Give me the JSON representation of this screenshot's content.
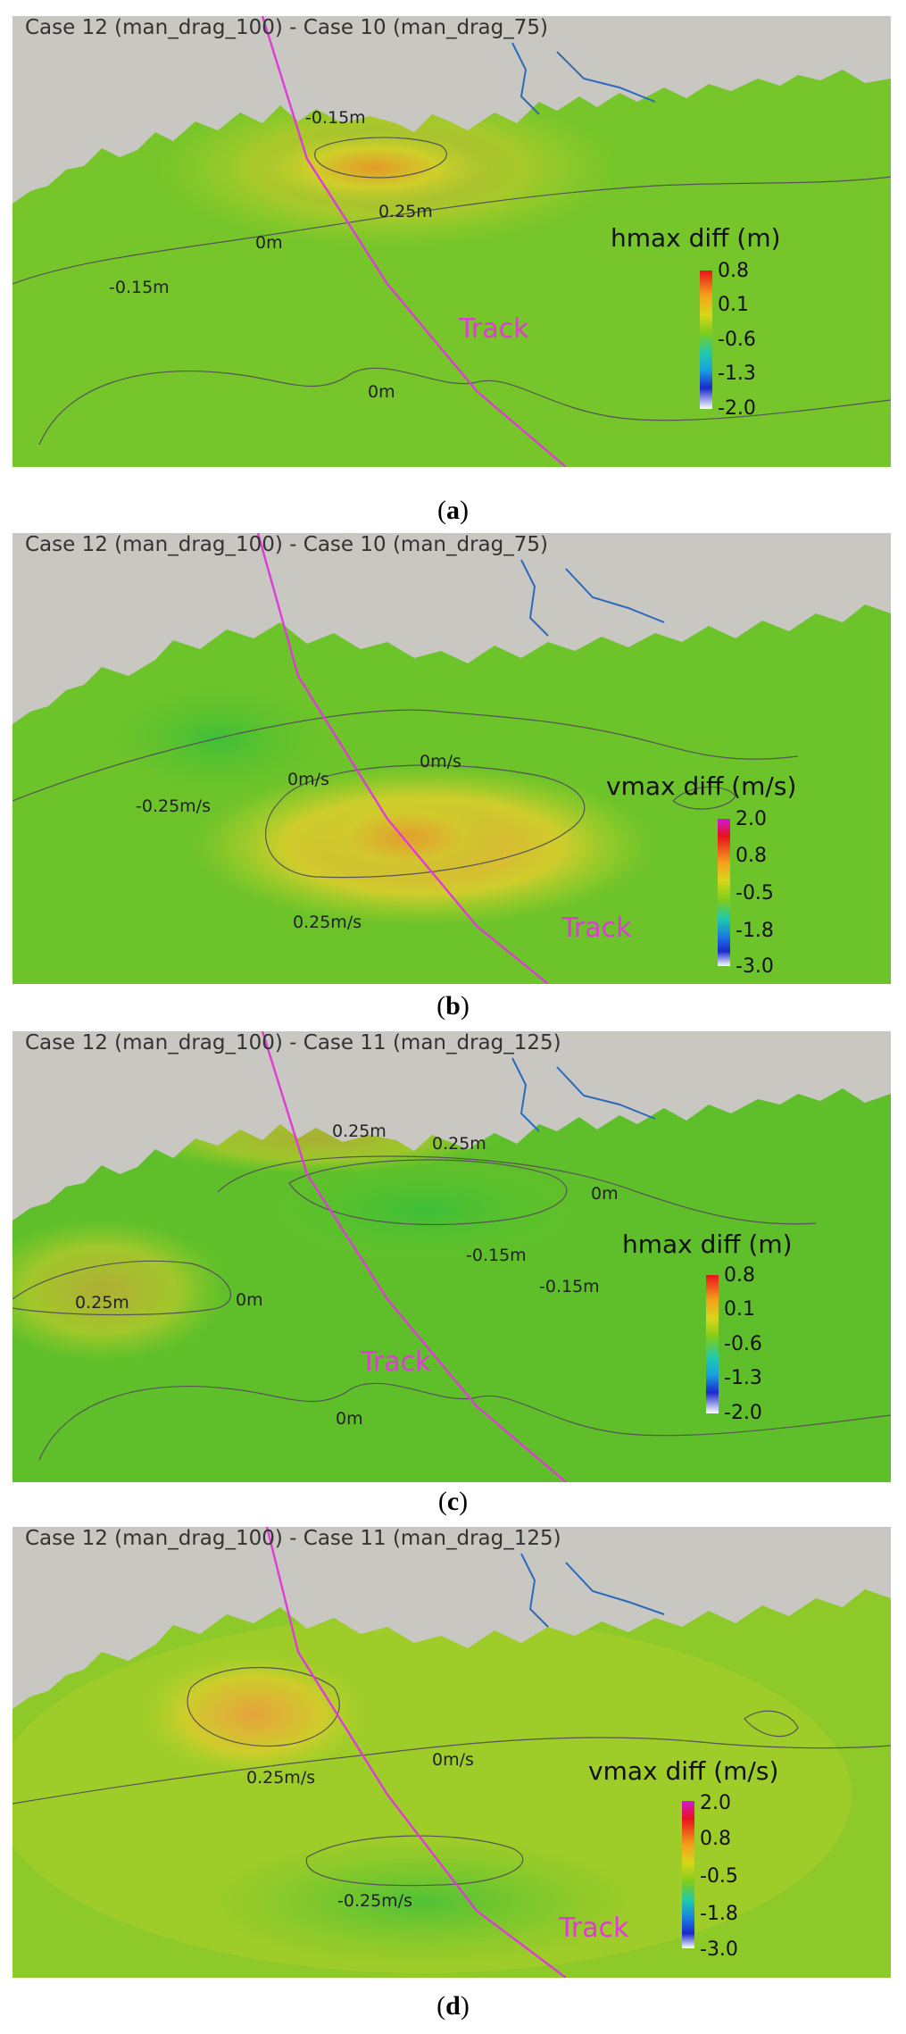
{
  "panels": [
    {
      "id": "a",
      "title": "Case 12 (man_drag_100) - Case 10 (man_drag_75)",
      "caption": "a",
      "legend": {
        "title": "hmax diff (m)",
        "ticks": [
          "0.8",
          "0.1",
          "-0.6",
          "-1.3",
          "-2.0"
        ]
      },
      "contour_labels": [
        "-0.15m",
        "0.25m",
        "0m",
        "-0.15m",
        "0m"
      ],
      "track_label": "Track"
    },
    {
      "id": "b",
      "title": "Case 12 (man_drag_100) - Case 10 (man_drag_75)",
      "caption": "b",
      "legend": {
        "title": "vmax diff (m/s)",
        "ticks": [
          "2.0",
          "0.8",
          "-0.5",
          "-1.8",
          "-3.0"
        ]
      },
      "contour_labels": [
        "-0.25m/s",
        "0m/s",
        "0m/s",
        "0.25m/s"
      ],
      "track_label": "Track"
    },
    {
      "id": "c",
      "title": "Case 12 (man_drag_100) - Case 11 (man_drag_125)",
      "caption": "c",
      "legend": {
        "title": "hmax diff (m)",
        "ticks": [
          "0.8",
          "0.1",
          "-0.6",
          "-1.3",
          "-2.0"
        ]
      },
      "contour_labels": [
        "0.25m",
        "0.25m",
        "0m",
        "-0.15m",
        "-0.15m",
        "0.25m",
        "0m",
        "0m"
      ],
      "track_label": "Track"
    },
    {
      "id": "d",
      "title": "Case 12 (man_drag_100) - Case 11 (man_drag_125)",
      "caption": "d",
      "legend": {
        "title": "vmax diff (m/s)",
        "ticks": [
          "2.0",
          "0.8",
          "-0.5",
          "-1.8",
          "-3.0"
        ]
      },
      "contour_labels": [
        "0.25m/s",
        "0m/s",
        "-0.25m/s"
      ],
      "track_label": "Track"
    }
  ]
}
